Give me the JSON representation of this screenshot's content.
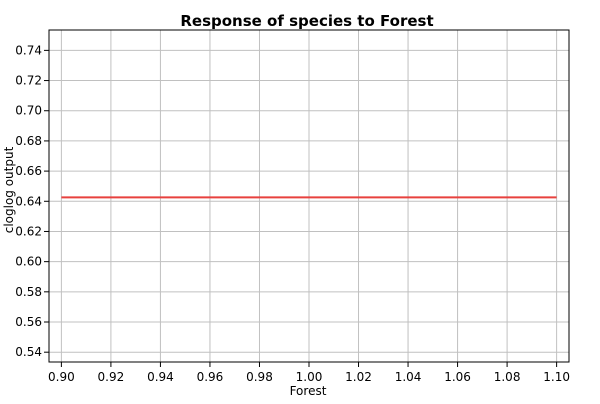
{
  "chart_data": {
    "type": "line",
    "title": "Response of species to Forest",
    "xlabel": "Forest",
    "ylabel": "cloglog output",
    "xlim": [
      0.895,
      1.105
    ],
    "ylim": [
      0.5335,
      0.7535
    ],
    "x_ticks": [
      "0.90",
      "0.92",
      "0.94",
      "0.96",
      "0.98",
      "1.00",
      "1.02",
      "1.04",
      "1.06",
      "1.08",
      "1.10"
    ],
    "y_ticks": [
      "0.54",
      "0.56",
      "0.58",
      "0.60",
      "0.62",
      "0.64",
      "0.66",
      "0.68",
      "0.70",
      "0.72",
      "0.74"
    ],
    "grid": true,
    "series": [
      {
        "color": "#e8413e",
        "x": [
          0.9,
          1.1
        ],
        "y": [
          0.6426,
          0.6426
        ]
      }
    ]
  }
}
